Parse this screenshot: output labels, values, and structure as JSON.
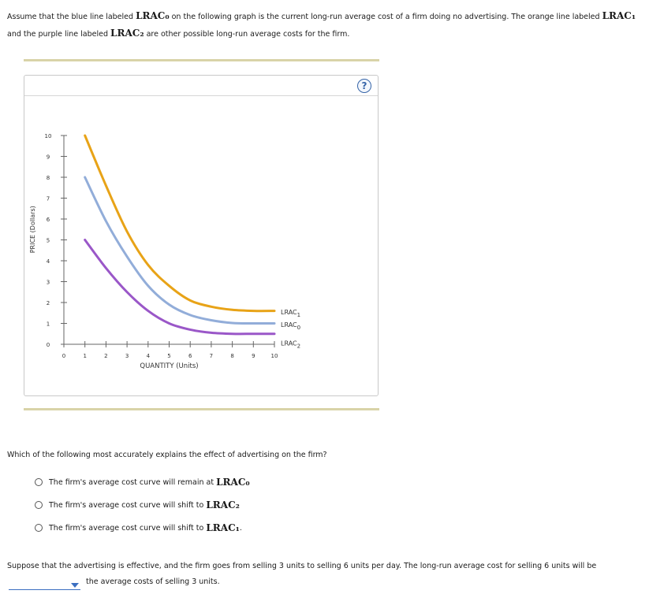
{
  "intro": {
    "p1": "Assume that the blue line labeled",
    "p2": "on the following graph is the current long-run average cost of a firm doing no advertising. The orange line labeled",
    "p3": "and the purple line labeled",
    "p4": "are other possible long-run average costs for the firm.",
    "t0": "LRAC₀",
    "t1": "LRAC₁",
    "t2": "LRAC₂"
  },
  "help_label": "?",
  "chart_data": {
    "type": "line",
    "xlabel": "QUANTITY (Units)",
    "ylabel": "PRICE (Dollars)",
    "xlim": [
      0,
      10
    ],
    "ylim": [
      0,
      10
    ],
    "xticks": [
      "0",
      "1",
      "2",
      "3",
      "4",
      "5",
      "6",
      "7",
      "8",
      "9",
      "10"
    ],
    "yticks": [
      "0",
      "1",
      "2",
      "3",
      "4",
      "5",
      "6",
      "7",
      "8",
      "9",
      "10"
    ],
    "series": [
      {
        "name": "LRAC1",
        "color": "#e8a317",
        "points": [
          [
            1,
            10
          ],
          [
            2,
            7.6
          ],
          [
            3,
            5.4
          ],
          [
            4,
            3.8
          ],
          [
            5,
            2.8
          ],
          [
            6,
            2.1
          ],
          [
            7,
            1.8
          ],
          [
            8,
            1.65
          ],
          [
            9,
            1.6
          ],
          [
            10,
            1.6
          ]
        ]
      },
      {
        "name": "LRAC0",
        "color": "#92add9",
        "points": [
          [
            1,
            8
          ],
          [
            2,
            5.9
          ],
          [
            3,
            4.2
          ],
          [
            4,
            2.8
          ],
          [
            5,
            1.9
          ],
          [
            6,
            1.4
          ],
          [
            7,
            1.15
          ],
          [
            8,
            1.02
          ],
          [
            9,
            1.0
          ],
          [
            10,
            1.0
          ]
        ]
      },
      {
        "name": "LRAC2",
        "color": "#9a57c8",
        "points": [
          [
            1,
            5
          ],
          [
            2,
            3.65
          ],
          [
            3,
            2.5
          ],
          [
            4,
            1.6
          ],
          [
            5,
            1.0
          ],
          [
            6,
            0.7
          ],
          [
            7,
            0.55
          ],
          [
            8,
            0.5
          ],
          [
            9,
            0.5
          ],
          [
            10,
            0.5
          ]
        ]
      }
    ],
    "labels": [
      {
        "base": "LRAC",
        "sub": "1",
        "y": 1.55
      },
      {
        "base": "LRAC",
        "sub": "0",
        "y": 0.95
      },
      {
        "base": "LRAC",
        "sub": "2",
        "y": 0.05
      }
    ]
  },
  "question": "Which of the following most accurately explains the effect of advertising on the firm?",
  "options": [
    {
      "text": "The firm's average cost curve will remain at",
      "term": "LRAC₀",
      "end": ""
    },
    {
      "text": "The firm's average cost curve will shift to",
      "term": "LRAC₂",
      "end": ""
    },
    {
      "text": "The firm's average cost curve will shift to",
      "term": "LRAC₁",
      "end": "."
    }
  ],
  "followup": {
    "before": "Suppose that the advertising is effective, and the firm goes from selling 3 units to selling 6 units per day. The long-run average cost for selling 6 units will be",
    "after": "the average costs of selling 3 units.",
    "dropdown_value": ""
  }
}
